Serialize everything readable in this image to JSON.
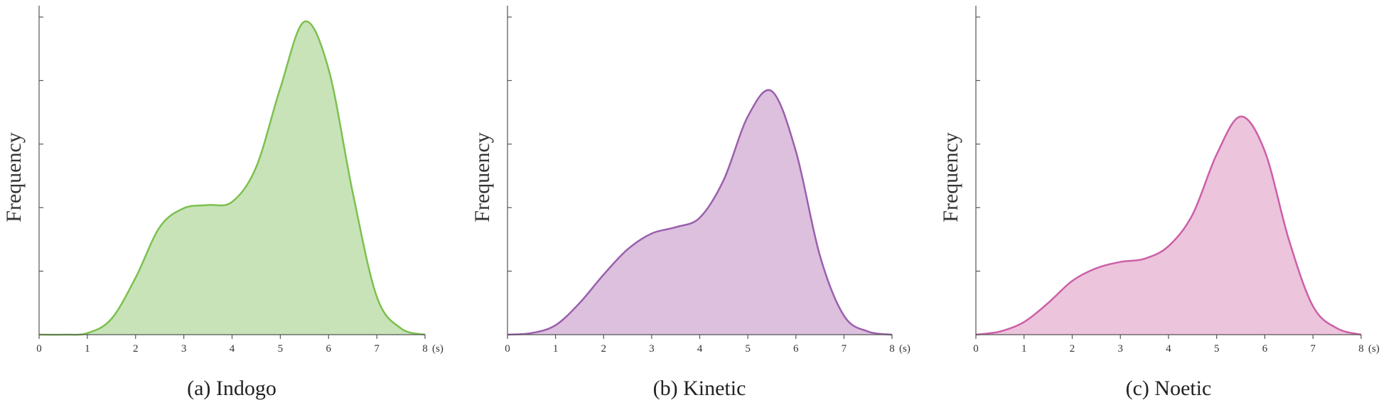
{
  "chart_data": [
    {
      "type": "area",
      "caption": "(a) Indogo",
      "ylabel": "Frequency",
      "x_unit": "(s)",
      "xlim": [
        0,
        8
      ],
      "x_ticks": [
        "0",
        "1",
        "2",
        "3",
        "4",
        "5",
        "6",
        "7",
        "8"
      ],
      "ylim": [
        0,
        1
      ],
      "y_tick_count": 5,
      "fill_color": "#c8e3b8",
      "line_color": "#7cc04e",
      "x": [
        0,
        0.5,
        1,
        1.5,
        2,
        2.5,
        3,
        3.5,
        4,
        4.5,
        5,
        5.5,
        6,
        6.5,
        7,
        7.5,
        8
      ],
      "values": [
        0,
        0,
        0.005,
        0.05,
        0.18,
        0.34,
        0.4,
        0.41,
        0.42,
        0.53,
        0.78,
        0.99,
        0.84,
        0.45,
        0.12,
        0.02,
        0
      ]
    },
    {
      "type": "area",
      "caption": "(b) Kinetic",
      "ylabel": "Frequency",
      "x_unit": "(s)",
      "xlim": [
        0,
        8
      ],
      "x_ticks": [
        "0",
        "1",
        "2",
        "3",
        "4",
        "5",
        "6",
        "7",
        "8"
      ],
      "ylim": [
        0,
        1
      ],
      "y_tick_count": 5,
      "fill_color": "#dcc0de",
      "line_color": "#9a5fad",
      "x": [
        0,
        0.5,
        1,
        1.5,
        2,
        2.5,
        3,
        3.5,
        4,
        4.5,
        5,
        5.5,
        6,
        6.5,
        7,
        7.5,
        8
      ],
      "values": [
        0,
        0.005,
        0.03,
        0.1,
        0.19,
        0.27,
        0.32,
        0.34,
        0.37,
        0.49,
        0.69,
        0.77,
        0.58,
        0.25,
        0.06,
        0.01,
        0
      ]
    },
    {
      "type": "area",
      "caption": "(c) Noetic",
      "ylabel": "Frequency",
      "x_unit": "(s)",
      "xlim": [
        0,
        8
      ],
      "x_ticks": [
        "0",
        "1",
        "2",
        "3",
        "4",
        "5",
        "6",
        "7",
        "8"
      ],
      "ylim": [
        0,
        1
      ],
      "y_tick_count": 5,
      "fill_color": "#ecc4dc",
      "line_color": "#cc5fa7",
      "x": [
        0,
        0.5,
        1,
        1.5,
        2,
        2.5,
        3,
        3.5,
        4,
        4.5,
        5,
        5.5,
        6,
        6.5,
        7,
        7.5,
        8
      ],
      "values": [
        0,
        0.01,
        0.04,
        0.1,
        0.17,
        0.21,
        0.23,
        0.24,
        0.28,
        0.38,
        0.57,
        0.69,
        0.58,
        0.3,
        0.09,
        0.02,
        0
      ]
    }
  ]
}
